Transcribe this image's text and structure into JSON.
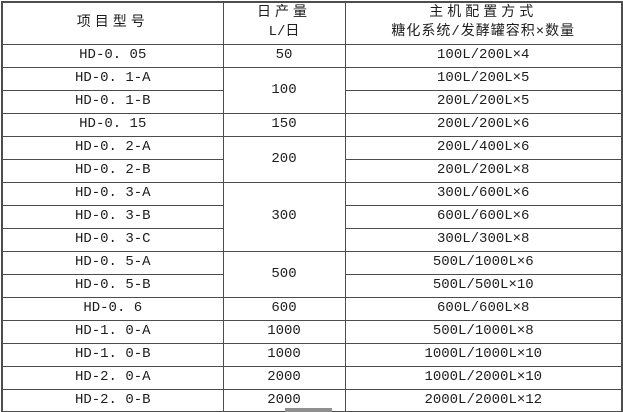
{
  "table": {
    "headers": {
      "model": "项目型号",
      "daily_output_line1": "日产量",
      "daily_output_line2": "L/日",
      "config_line1": "主机配置方式",
      "config_line2": "糖化系统/发酵罐容积×数量"
    },
    "rows": [
      {
        "model": "HD-0. 05",
        "daily_output": "50",
        "output_rowspan": 1,
        "config": "100L/200L×4"
      },
      {
        "model": "HD-0. 1-A",
        "daily_output": "100",
        "output_rowspan": 2,
        "config": "100L/200L×5"
      },
      {
        "model": "HD-0. 1-B",
        "config": "200L/200L×5"
      },
      {
        "model": "HD-0. 15",
        "daily_output": "150",
        "output_rowspan": 1,
        "config": "200L/200L×6"
      },
      {
        "model": "HD-0. 2-A",
        "daily_output": "200",
        "output_rowspan": 2,
        "config": "200L/400L×6"
      },
      {
        "model": "HD-0. 2-B",
        "config": "200L/200L×8"
      },
      {
        "model": "HD-0. 3-A",
        "daily_output": "300",
        "output_rowspan": 3,
        "config": "300L/600L×6"
      },
      {
        "model": "HD-0. 3-B",
        "config": "600L/600L×6"
      },
      {
        "model": "HD-0. 3-C",
        "config": "300L/300L×8"
      },
      {
        "model": "HD-0. 5-A",
        "daily_output": "500",
        "output_rowspan": 2,
        "config": "500L/1000L×6"
      },
      {
        "model": "HD-0. 5-B",
        "config": "500L/500L×10"
      },
      {
        "model": "HD-0. 6",
        "daily_output": "600",
        "output_rowspan": 1,
        "config": "600L/600L×8"
      },
      {
        "model": "HD-1. 0-A",
        "daily_output": "1000",
        "output_rowspan": 1,
        "config": "500L/1000L×8"
      },
      {
        "model": "HD-1. 0-B",
        "daily_output": "1000",
        "output_rowspan": 1,
        "config": "1000L/1000L×10"
      },
      {
        "model": "HD-2. 0-A",
        "daily_output": "2000",
        "output_rowspan": 1,
        "config": "1000L/2000L×10"
      },
      {
        "model": "HD-2. 0-B",
        "daily_output": "2000",
        "output_rowspan": 1,
        "config": "2000L/2000L×12"
      }
    ]
  },
  "colors": {
    "border": "#4d4d4d",
    "text": "#1d1d1d",
    "background": "#ffffff",
    "partial_element": "#8f8f8f"
  }
}
